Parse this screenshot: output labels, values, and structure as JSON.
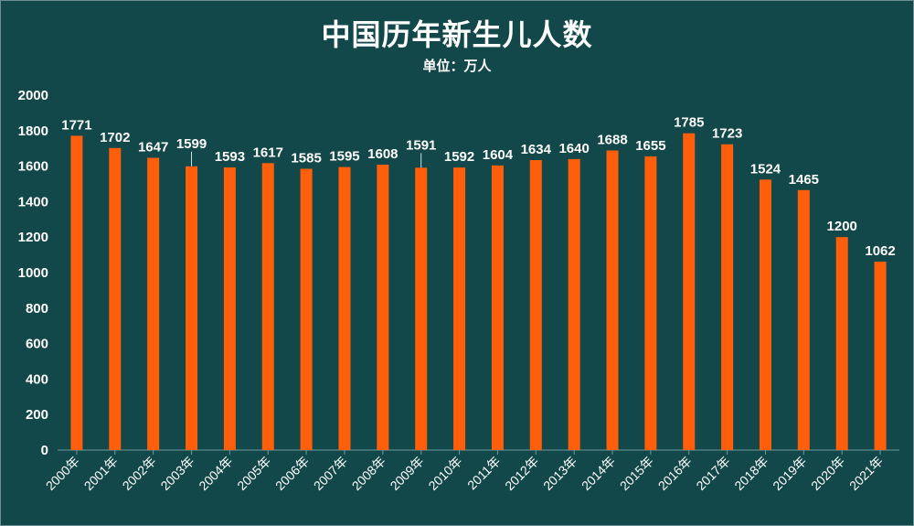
{
  "chart_data": {
    "type": "bar",
    "title": "中国历年新生儿人数",
    "subtitle": "单位：万人",
    "xlabel": "",
    "ylabel": "",
    "ylim": [
      0,
      2000
    ],
    "yticks": [
      0,
      200,
      400,
      600,
      800,
      1000,
      1200,
      1400,
      1600,
      1800,
      2000
    ],
    "categories": [
      "2000年",
      "2001年",
      "2002年",
      "2003年",
      "2004年",
      "2005年",
      "2006年",
      "2007年",
      "2008年",
      "2009年",
      "2010年",
      "2011年",
      "2012年",
      "2013年",
      "2014年",
      "2015年",
      "2016年",
      "2017年",
      "2018年",
      "2019年",
      "2020年",
      "2021年"
    ],
    "values": [
      1771,
      1702,
      1647,
      1599,
      1593,
      1617,
      1585,
      1595,
      1608,
      1591,
      1592,
      1604,
      1634,
      1640,
      1688,
      1655,
      1785,
      1723,
      1524,
      1465,
      1200,
      1062
    ],
    "grid": false,
    "legend": "none",
    "colors": {
      "background": "#12484a",
      "bar": "#ff5f0a",
      "text": "#ffffff"
    }
  }
}
